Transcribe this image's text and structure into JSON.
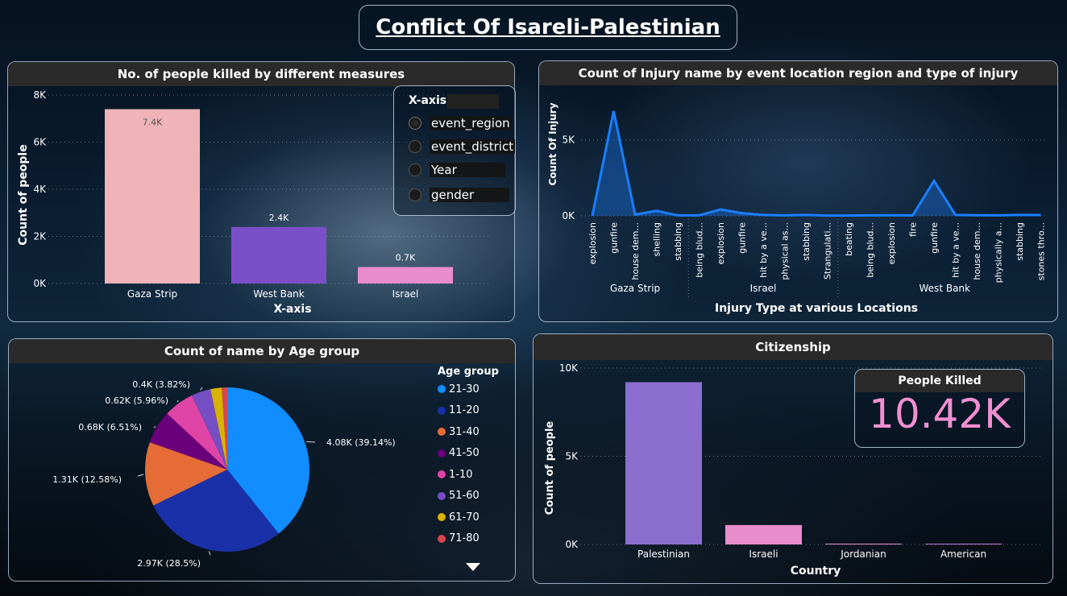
{
  "title": "Conflict Of Isareli-Palestinian",
  "killed_panel": {
    "title": "No. of people killed by different measures",
    "slicer": {
      "header": "X-axis",
      "options": [
        "event_region",
        "event_district",
        "Year",
        "gender"
      ],
      "selected": "event_region"
    }
  },
  "injury_panel": {
    "title": "Count of Injury name by event location region and type of injury"
  },
  "age_panel": {
    "title": "Count of name by Age group"
  },
  "citizenship_panel": {
    "title": "Citizenship",
    "card": {
      "title": "People Killed",
      "value": "10.42K"
    }
  },
  "chart_data": [
    {
      "type": "bar",
      "title": "No. of people killed by different measures",
      "xlabel": "X-axis",
      "ylabel": "Count of people",
      "categories": [
        "Gaza Strip",
        "West Bank",
        "Israel"
      ],
      "values": [
        7400,
        2400,
        700
      ],
      "data_labels": [
        "7.4K",
        "2.4K",
        "0.7K"
      ],
      "colors": [
        "#f0b3b8",
        "#7b4fc8",
        "#e98ccc"
      ],
      "ylim": [
        0,
        8000
      ],
      "yticks": [
        "0K",
        "2K",
        "4K",
        "6K",
        "8K"
      ],
      "grid": true
    },
    {
      "type": "area",
      "title": "Count of Injury name by event location region and type of injury",
      "xlabel": "Injury Type at various Locations",
      "ylabel": "Count Of Injury",
      "groups": [
        {
          "name": "Gaza Strip",
          "categories": [
            "explosion",
            "gunfire",
            "house dem...",
            "shelling",
            "stabbing"
          ],
          "values": [
            0,
            6900,
            80,
            330,
            30
          ]
        },
        {
          "name": "Israel",
          "categories": [
            "being blud...",
            "explosion",
            "gunfire",
            "hit by a ve...",
            "physical as...",
            "stabbing",
            "Strangulati..."
          ],
          "values": [
            30,
            420,
            180,
            60,
            30,
            60,
            20
          ]
        },
        {
          "name": "West Bank",
          "categories": [
            "beating",
            "being blud...",
            "explosion",
            "fire",
            "gunfire",
            "hit by a ve...",
            "house dem...",
            "physically a...",
            "stabbing",
            "stones thro..."
          ],
          "values": [
            20,
            30,
            40,
            30,
            2300,
            60,
            40,
            30,
            60,
            50
          ]
        }
      ],
      "ylim": [
        0,
        7000
      ],
      "yticks": [
        "0K",
        "5K"
      ],
      "color": "#1a7fff",
      "grid": true
    },
    {
      "type": "pie",
      "title": "Count of name by Age group",
      "legend_title": "Age group",
      "legend_position": "right",
      "slices": [
        {
          "label": "21-30",
          "value": 4080,
          "text": "4.08K (39.14%)",
          "color": "#118dff"
        },
        {
          "label": "11-20",
          "value": 2970,
          "text": "2.97K (28.5%)",
          "color": "#1a30a8"
        },
        {
          "label": "31-40",
          "value": 1310,
          "text": "1.31K (12.58%)",
          "color": "#e66c37"
        },
        {
          "label": "41-50",
          "value": 680,
          "text": "0.68K (6.51%)",
          "color": "#6b007b"
        },
        {
          "label": "1-10",
          "value": 620,
          "text": "0.62K (5.96%)",
          "color": "#e044a7"
        },
        {
          "label": "51-60",
          "value": 400,
          "text": "0.4K (3.82%)",
          "color": "#744ec2"
        },
        {
          "label": "61-70",
          "value": 230,
          "text": "",
          "color": "#d9b300"
        },
        {
          "label": "71-80",
          "value": 110,
          "text": "",
          "color": "#d64550"
        }
      ]
    },
    {
      "type": "bar",
      "title": "Citizenship",
      "xlabel": "Country",
      "ylabel": "Count of people",
      "categories": [
        "Palestinian",
        "Israeli",
        "Jordanian",
        "American"
      ],
      "values": [
        9200,
        1100,
        5,
        15
      ],
      "colors": [
        "#8b6fcf",
        "#e98ccc",
        "#e98ccc",
        "#c47bd6"
      ],
      "ylim": [
        0,
        10000
      ],
      "yticks": [
        "0K",
        "5K",
        "10K"
      ],
      "grid": true
    }
  ]
}
